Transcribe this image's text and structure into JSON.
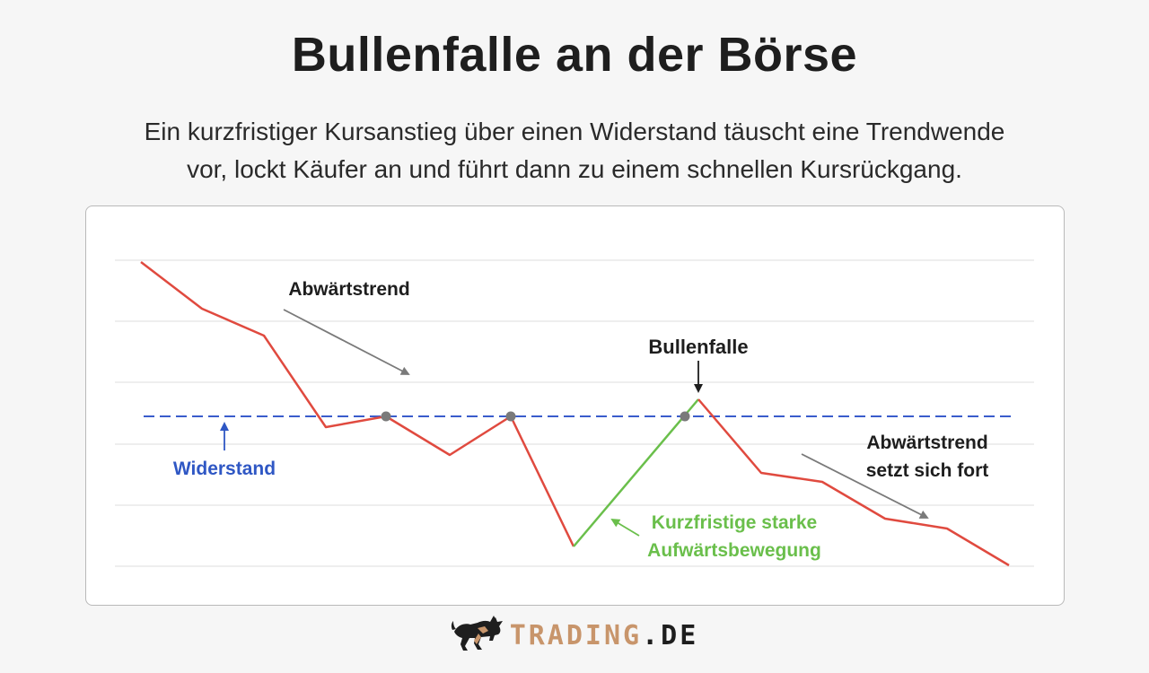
{
  "title": "Bullenfalle an der Börse",
  "subtitle": {
    "line1": "Ein kurzfristiger Kursanstieg über einen Widerstand täuscht eine Trendwende",
    "line2": "vor, lockt Käufer an und führt dann zu einem schnellen Kursrückgang."
  },
  "diagram": {
    "labels": {
      "downtrend": "Abwärtstrend",
      "bull_trap": "Bullenfalle",
      "resistance": "Widerstand",
      "downtrend_continues_1": "Abwärtstrend",
      "downtrend_continues_2": "setzt sich fort",
      "upmove_1": "Kurzfristige starke",
      "upmove_2": "Aufwärtsbewegung"
    },
    "colors": {
      "price_down": "#e04a3f",
      "price_up": "#6abf4b",
      "resistance": "#3a5ccc",
      "resistance_label": "#2f57c4",
      "upmove_label": "#6abf4b",
      "touch_point": "#7a7a7a",
      "arrow": "#7a7a7a",
      "grid": "#e8e8e8"
    }
  },
  "brand": {
    "part1": "TRADING",
    "part2": ".DE",
    "icon": "bull-icon",
    "colors": {
      "accent": "#c8956b",
      "dark": "#1e1e1e"
    }
  }
}
